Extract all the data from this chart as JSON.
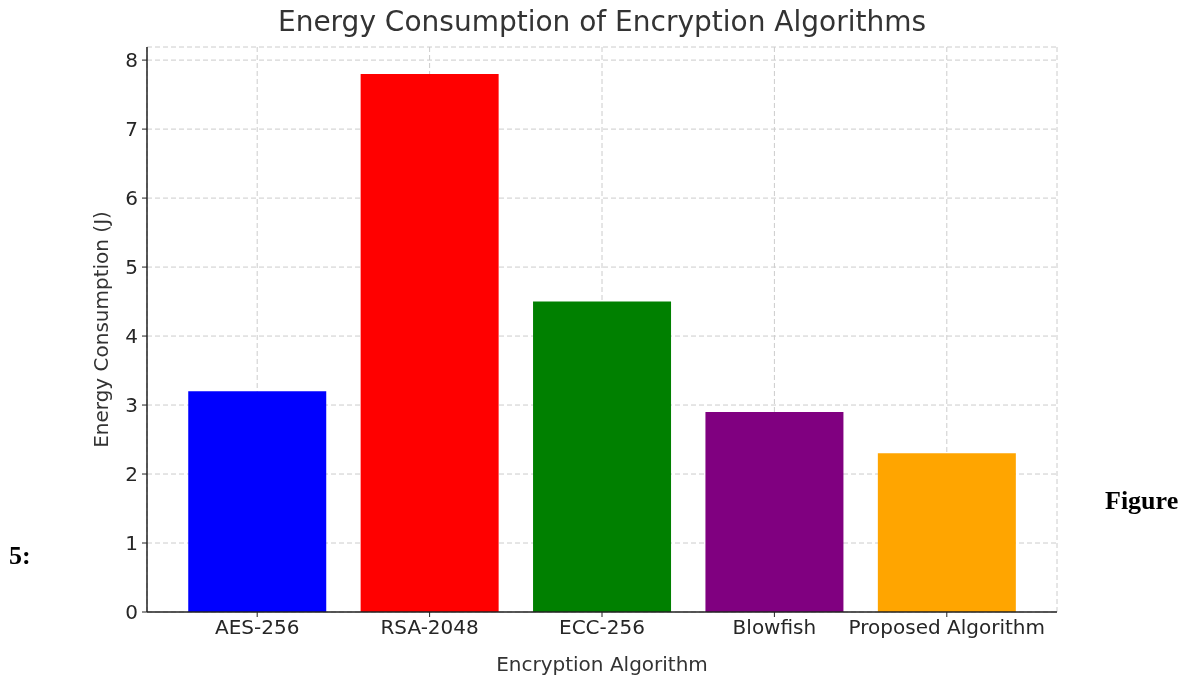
{
  "chart_data": {
    "type": "bar",
    "title": "Energy Consumption of Encryption Algorithms",
    "xlabel": "Encryption Algorithm",
    "ylabel": "Energy Consumption (J)",
    "categories": [
      "AES-256",
      "RSA-2048",
      "ECC-256",
      "Blowfish",
      "Proposed Algorithm"
    ],
    "values": [
      3.2,
      7.8,
      4.5,
      2.9,
      2.3
    ],
    "colors": [
      "#0000ff",
      "#ff0000",
      "#008000",
      "#800080",
      "#ffa500"
    ],
    "ylim": [
      0,
      8.19
    ],
    "yticks": [
      0,
      1,
      2,
      3,
      4,
      5,
      6,
      7,
      8
    ],
    "grid": true,
    "annotations": [
      "Figure",
      "5:"
    ]
  }
}
